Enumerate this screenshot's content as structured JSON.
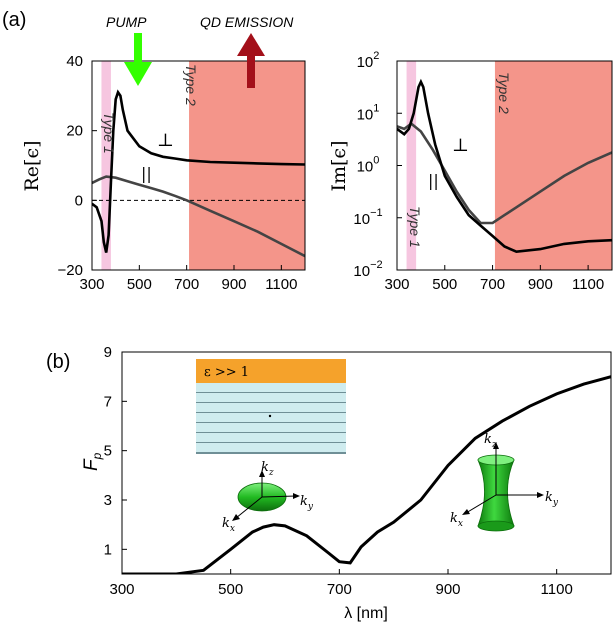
{
  "figure": {
    "panel_a_label": "(a)",
    "panel_b_label": "(b)",
    "pump_label": "PUMP",
    "qd_emission_label": "QD EMISSION",
    "type1_label": "Type 1",
    "type2_label": "Type 2",
    "inset_eps_label": "ε >> 1",
    "colors": {
      "type1_band": "#f6c6e0",
      "type2_band": "#f4958a",
      "curve_perp": "#000000",
      "curve_par": "#444444",
      "pump_arrow": "#33ff00",
      "qd_arrow": "#a3101a",
      "inset_top_layer": "#f5a22b",
      "inset_layers": "#cfecef",
      "inset_layer_lines": "#6f8f96",
      "green_surface": "#22bb22"
    }
  },
  "chart_data": [
    {
      "id": "re-eps",
      "type": "line",
      "title": "",
      "xlabel": "",
      "ylabel": "Re[ϵ]",
      "xlim": [
        300,
        1200
      ],
      "ylim": [
        -20,
        40
      ],
      "xticks": [
        300,
        500,
        700,
        900,
        1100
      ],
      "yticks": [
        -20,
        0,
        20,
        40
      ],
      "ytick_labels": [
        "−20",
        "0",
        "20",
        "40"
      ],
      "regions": [
        {
          "name": "Type 1",
          "from": 340,
          "to": 380
        },
        {
          "name": "Type 2",
          "from": 710,
          "to": 1200
        }
      ],
      "reference_line": {
        "y": 0,
        "style": "dashed"
      },
      "series": [
        {
          "name": "⊥",
          "x": [
            300,
            320,
            340,
            350,
            360,
            370,
            380,
            390,
            400,
            410,
            420,
            430,
            450,
            500,
            550,
            600,
            650,
            700,
            800,
            900,
            1000,
            1100,
            1200
          ],
          "values": [
            -1,
            -2,
            -6,
            -12,
            -15,
            -10,
            5,
            20,
            29,
            31,
            30,
            26,
            20,
            15.5,
            13.5,
            12.5,
            12,
            11.5,
            11,
            10.8,
            10.6,
            10.4,
            10.3
          ]
        },
        {
          "name": "||",
          "x": [
            300,
            330,
            360,
            400,
            450,
            500,
            550,
            600,
            650,
            700,
            750,
            800,
            900,
            1000,
            1100,
            1200
          ],
          "values": [
            5,
            6,
            6.8,
            6.5,
            5.5,
            4.5,
            3.5,
            2.5,
            1.3,
            0,
            -1.5,
            -3,
            -6,
            -9,
            -12.5,
            -16
          ]
        }
      ]
    },
    {
      "id": "im-eps",
      "type": "line",
      "title": "",
      "xlabel": "",
      "ylabel": "Im[ϵ]",
      "yscale": "log",
      "xlim": [
        300,
        1200
      ],
      "ylim_log10": [
        -2,
        2
      ],
      "xticks": [
        300,
        500,
        700,
        900,
        1100
      ],
      "yticks_log10": [
        -2,
        -1,
        0,
        1,
        2
      ],
      "ytick_bases": [
        "10",
        "10",
        "10",
        "10",
        "10"
      ],
      "ytick_exps": [
        "−2",
        "−1",
        "0",
        "1",
        "2"
      ],
      "regions": [
        {
          "name": "Type 1",
          "from": 340,
          "to": 380
        },
        {
          "name": "Type 2",
          "from": 710,
          "to": 1200
        }
      ],
      "series": [
        {
          "name": "⊥",
          "x": [
            300,
            330,
            350,
            370,
            390,
            400,
            410,
            430,
            460,
            500,
            550,
            600,
            650,
            700,
            750,
            800,
            900,
            1000,
            1100,
            1200
          ],
          "values_log10": [
            0.7,
            0.6,
            0.7,
            1.0,
            1.5,
            1.6,
            1.5,
            1.0,
            0.4,
            -0.2,
            -0.6,
            -0.95,
            -1.15,
            -1.35,
            -1.55,
            -1.65,
            -1.6,
            -1.5,
            -1.45,
            -1.43
          ]
        },
        {
          "name": "||",
          "x": [
            300,
            330,
            360,
            400,
            450,
            500,
            550,
            600,
            650,
            700,
            750,
            800,
            900,
            1000,
            1100,
            1200
          ],
          "values_log10": [
            0.75,
            0.7,
            0.8,
            0.65,
            0.3,
            -0.1,
            -0.5,
            -0.85,
            -1.1,
            -1.1,
            -0.95,
            -0.8,
            -0.5,
            -0.2,
            0.05,
            0.25
          ]
        }
      ]
    },
    {
      "id": "fp",
      "type": "line",
      "title": "",
      "xlabel": "λ [nm]",
      "ylabel_main": "F",
      "ylabel_sub": "p",
      "xlim": [
        300,
        1200
      ],
      "ylim": [
        0,
        9
      ],
      "xticks": [
        300,
        500,
        700,
        900,
        1100
      ],
      "yticks": [
        1,
        3,
        5,
        7,
        9
      ],
      "series": [
        {
          "name": "F_p",
          "x": [
            300,
            350,
            400,
            450,
            500,
            540,
            560,
            580,
            600,
            640,
            680,
            700,
            720,
            740,
            770,
            800,
            850,
            900,
            950,
            1000,
            1050,
            1100,
            1150,
            1200
          ],
          "values": [
            0,
            0,
            0,
            0.15,
            1.0,
            1.7,
            1.9,
            2.0,
            1.95,
            1.55,
            0.85,
            0.5,
            0.45,
            1.1,
            1.7,
            2.1,
            3.0,
            4.4,
            5.5,
            6.2,
            6.8,
            7.3,
            7.7,
            8.0
          ]
        }
      ]
    }
  ],
  "insets": {
    "k_z": "k",
    "k_z_sub": "z",
    "k_y": "k",
    "k_y_sub": "y",
    "k_x": "k",
    "k_x_sub": "x"
  }
}
